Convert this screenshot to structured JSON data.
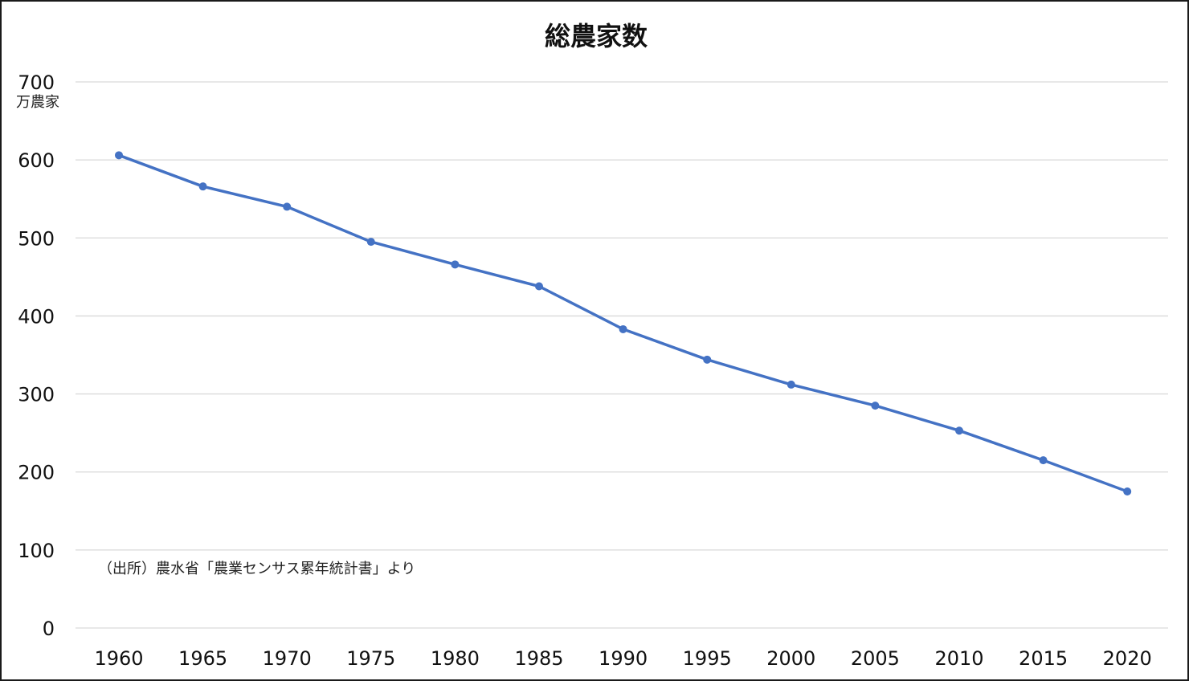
{
  "chart_data": {
    "type": "line",
    "title": "総農家数",
    "y_unit": "万農家",
    "source_note": "（出所）農水省「農業センサス累年統計書」より",
    "categories": [
      "1960",
      "1965",
      "1970",
      "1975",
      "1980",
      "1985",
      "1990",
      "1995",
      "2000",
      "2005",
      "2010",
      "2015",
      "2020"
    ],
    "series": [
      {
        "values": [
          606,
          566,
          540,
          495,
          466,
          438,
          383,
          344,
          312,
          285,
          253,
          215,
          175
        ]
      }
    ],
    "ylim": [
      0,
      700
    ],
    "yticks": [
      0,
      100,
      200,
      300,
      400,
      500,
      600,
      700
    ],
    "grid": true,
    "legend": "none",
    "colors": {
      "line": "#4472c4",
      "grid": "#d9d9d9",
      "text": "#111111"
    }
  }
}
